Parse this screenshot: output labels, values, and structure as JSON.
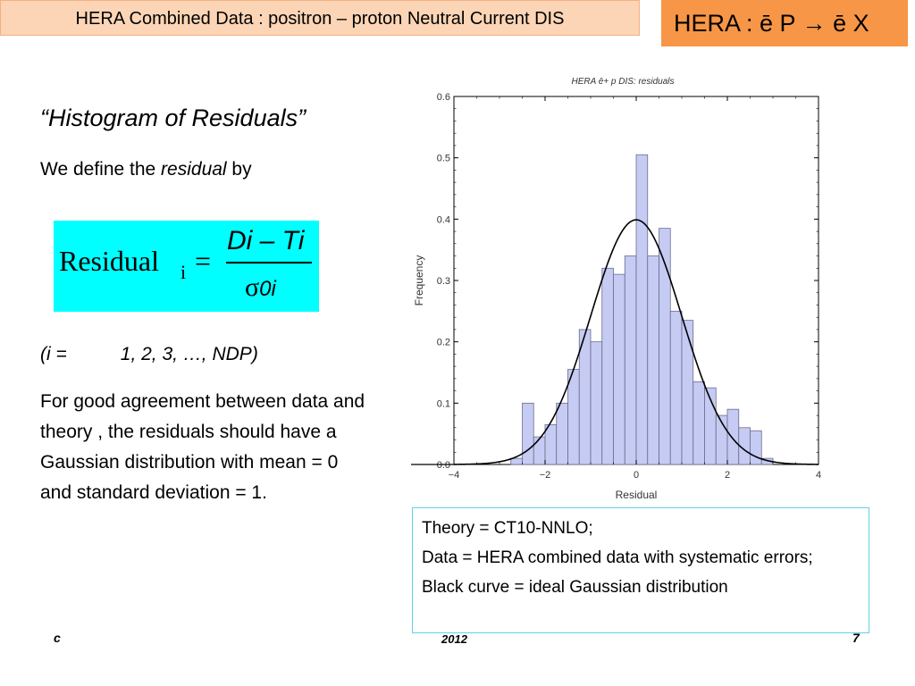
{
  "header": {
    "title": "HERA Combined Data : positron – proton Neutral Current DIS",
    "process": "HERA : ē P → ē X"
  },
  "text": {
    "heading": "“Histogram of Residuals”",
    "define_pre": "We define the ",
    "define_em": "residual",
    "define_post": " by",
    "formula_word": "Residual",
    "formula_sub": "i",
    "formula_eq": "=",
    "formula_num": "Di – Ti",
    "formula_den_sigma": "σ",
    "formula_den_sub": "0i",
    "index_pre": "(i =",
    "index_post": "1, 2, 3, …, NDP)",
    "agreement": "For good agreement between data and theory , the residuals should have a Gaussian distribution with mean = 0 and standard deviation = 1."
  },
  "legend": {
    "line1": "Theory = CT10-NNLO;",
    "line2": "Data = HERA combined data with systematic errors;",
    "line3": "Black curve = ideal Gaussian distribution"
  },
  "footer": {
    "left": "c",
    "center": "2012",
    "right": "7"
  },
  "chart_data": {
    "type": "bar",
    "title": "HERA ē+ p DIS: residuals",
    "xlabel": "Residual",
    "ylabel": "Frequency",
    "xlim": [
      -4,
      4
    ],
    "ylim": [
      0,
      0.6
    ],
    "xticks": [
      -4,
      -2,
      0,
      2,
      4
    ],
    "yticks": [
      0.0,
      0.1,
      0.2,
      0.3,
      0.4,
      0.5,
      0.6
    ],
    "bin_width": 0.25,
    "bins": [
      {
        "x0": -3.25,
        "value": 0.0
      },
      {
        "x0": -2.75,
        "value": 0.01
      },
      {
        "x0": -2.5,
        "value": 0.1
      },
      {
        "x0": -2.25,
        "value": 0.045
      },
      {
        "x0": -2.0,
        "value": 0.065
      },
      {
        "x0": -1.75,
        "value": 0.1
      },
      {
        "x0": -1.5,
        "value": 0.155
      },
      {
        "x0": -1.25,
        "value": 0.22
      },
      {
        "x0": -1.0,
        "value": 0.2
      },
      {
        "x0": -0.75,
        "value": 0.32
      },
      {
        "x0": -0.5,
        "value": 0.31
      },
      {
        "x0": -0.25,
        "value": 0.34
      },
      {
        "x0": 0.0,
        "value": 0.505
      },
      {
        "x0": 0.25,
        "value": 0.34
      },
      {
        "x0": 0.5,
        "value": 0.385
      },
      {
        "x0": 0.75,
        "value": 0.25
      },
      {
        "x0": 1.0,
        "value": 0.235
      },
      {
        "x0": 1.25,
        "value": 0.135
      },
      {
        "x0": 1.5,
        "value": 0.125
      },
      {
        "x0": 1.75,
        "value": 0.08
      },
      {
        "x0": 2.0,
        "value": 0.09
      },
      {
        "x0": 2.25,
        "value": 0.06
      },
      {
        "x0": 2.5,
        "value": 0.055
      },
      {
        "x0": 2.75,
        "value": 0.01
      }
    ],
    "curve": {
      "type": "gaussian",
      "mean": 0,
      "sigma": 1
    },
    "colors": {
      "bar_fill": "#c5cbf2",
      "bar_stroke": "#6b6b8f",
      "curve": "#000000"
    }
  }
}
